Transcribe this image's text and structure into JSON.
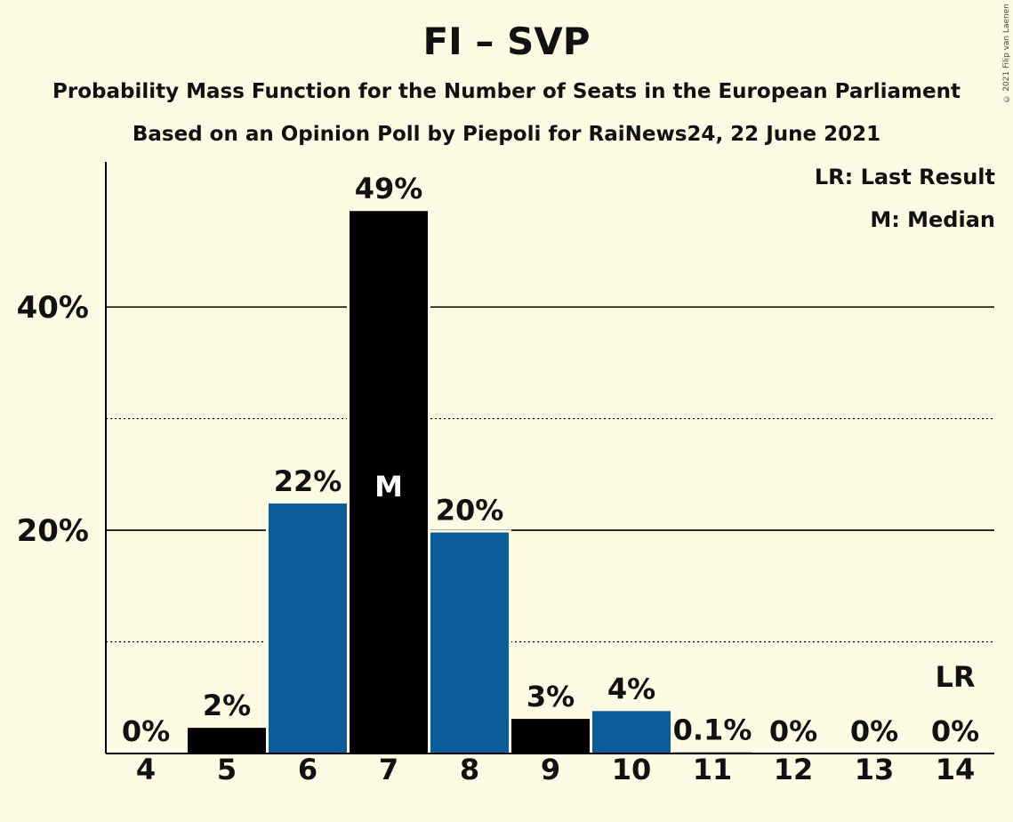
{
  "header": {
    "title": "FI – SVP",
    "subtitle_1": "Probability Mass Function for the Number of Seats in the European Parliament",
    "subtitle_2": "Based on an Opinion Poll by Piepoli for RaiNews24, 22 June 2021",
    "copyright": "© 2021 Filip van Laenen"
  },
  "legend": {
    "last_result": "LR: Last Result",
    "median": "M: Median"
  },
  "chart_data": {
    "type": "bar",
    "categories": [
      "4",
      "5",
      "6",
      "7",
      "8",
      "9",
      "10",
      "11",
      "12",
      "13",
      "14"
    ],
    "values": [
      0,
      2.3,
      22.4,
      48.6,
      19.8,
      3.1,
      3.8,
      0.1,
      0,
      0,
      0
    ],
    "labels": [
      "0%",
      "2%",
      "22%",
      "49%",
      "20%",
      "3%",
      "4%",
      "0.1%",
      "0%",
      "0%",
      "0%"
    ],
    "bar_colors": [
      "#000000",
      "#000000",
      "#0b5c99",
      "#000000",
      "#0b5c99",
      "#000000",
      "#0b5c99",
      "#000000",
      "#000000",
      "#000000",
      "#000000"
    ],
    "ylim": [
      0,
      53
    ],
    "yticks": [
      {
        "value": 20,
        "label": "20%"
      },
      {
        "value": 40,
        "label": "40%"
      }
    ],
    "minor_gridlines": [
      10,
      30
    ],
    "median_category": "7",
    "median_label": "M",
    "last_result_category": "14",
    "last_result_label": "LR",
    "grid": true,
    "legend_position": "top-right"
  }
}
